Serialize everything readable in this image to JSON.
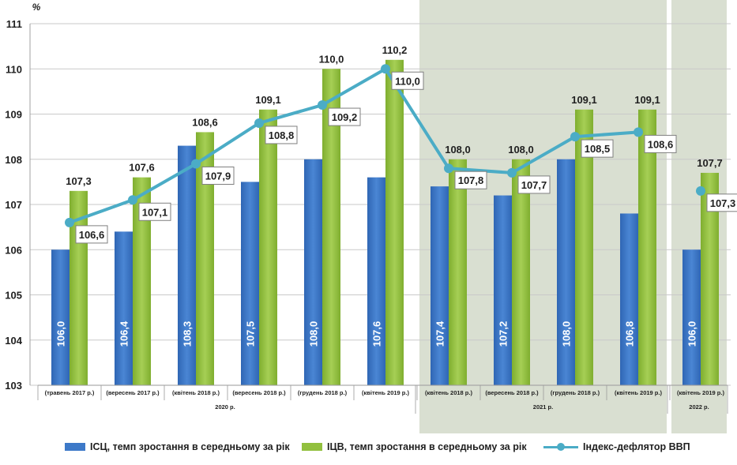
{
  "chart_data": {
    "type": "bar",
    "y_unit": "%",
    "ylim": [
      103,
      111
    ],
    "yticks": [
      103,
      104,
      105,
      106,
      107,
      108,
      109,
      110,
      111
    ],
    "categories": [
      "(травень 2017 р.)",
      "(вересень 2017 р.)",
      "(квітень 2018 р.)",
      "(вересень 2018 р.)",
      "(грудень 2018 р.)",
      "(квітень 2019 р.)",
      "(квітень 2018 р.)",
      "(вересень 2018 р.)",
      "(грудень 2018 р.)",
      "(квітень 2019 р.)",
      "(квітень 2019 р.)"
    ],
    "groups": [
      {
        "label": "2020 р.",
        "start": 0,
        "end": 5,
        "shaded": false
      },
      {
        "label": "2021 р.",
        "start": 6,
        "end": 9,
        "shaded": true
      },
      {
        "label": "2022 р.",
        "start": 10,
        "end": 10,
        "shaded": true
      }
    ],
    "series": [
      {
        "name": "ІСЦ, темп зростання в середньому за рік",
        "type": "bar",
        "color": "#3d79c8",
        "values": [
          106.0,
          106.4,
          108.3,
          107.5,
          108.0,
          107.6,
          107.4,
          107.2,
          108.0,
          106.8,
          106.0
        ],
        "labels": [
          "106,0",
          "106,4",
          "108,3",
          "107,5",
          "108,0",
          "107,6",
          "107,4",
          "107,2",
          "108,0",
          "106,8",
          "106,0"
        ]
      },
      {
        "name": "ІЦВ, темп зростання в середньому за рік",
        "type": "bar",
        "color": "#92c03e",
        "values": [
          107.3,
          107.6,
          108.6,
          109.1,
          110.0,
          110.2,
          108.0,
          108.0,
          109.1,
          109.1,
          107.7
        ],
        "labels": [
          "107,3",
          "107,6",
          "108,6",
          "109,1",
          "110,0",
          "110,2",
          "108,0",
          "108,0",
          "109,1",
          "109,1",
          "107,7"
        ]
      },
      {
        "name": "Індекс-дефлятор  ВВП",
        "type": "line",
        "color": "#4bacc6",
        "values": [
          106.6,
          107.1,
          107.9,
          108.8,
          109.2,
          110.0,
          107.8,
          107.7,
          108.5,
          108.6,
          107.3
        ],
        "labels": [
          "106,6",
          "107,1",
          "107,9",
          "108,8",
          "109,2",
          "110,0",
          "107,8",
          "107,7",
          "108,5",
          "108,6",
          "107,3"
        ]
      }
    ]
  }
}
